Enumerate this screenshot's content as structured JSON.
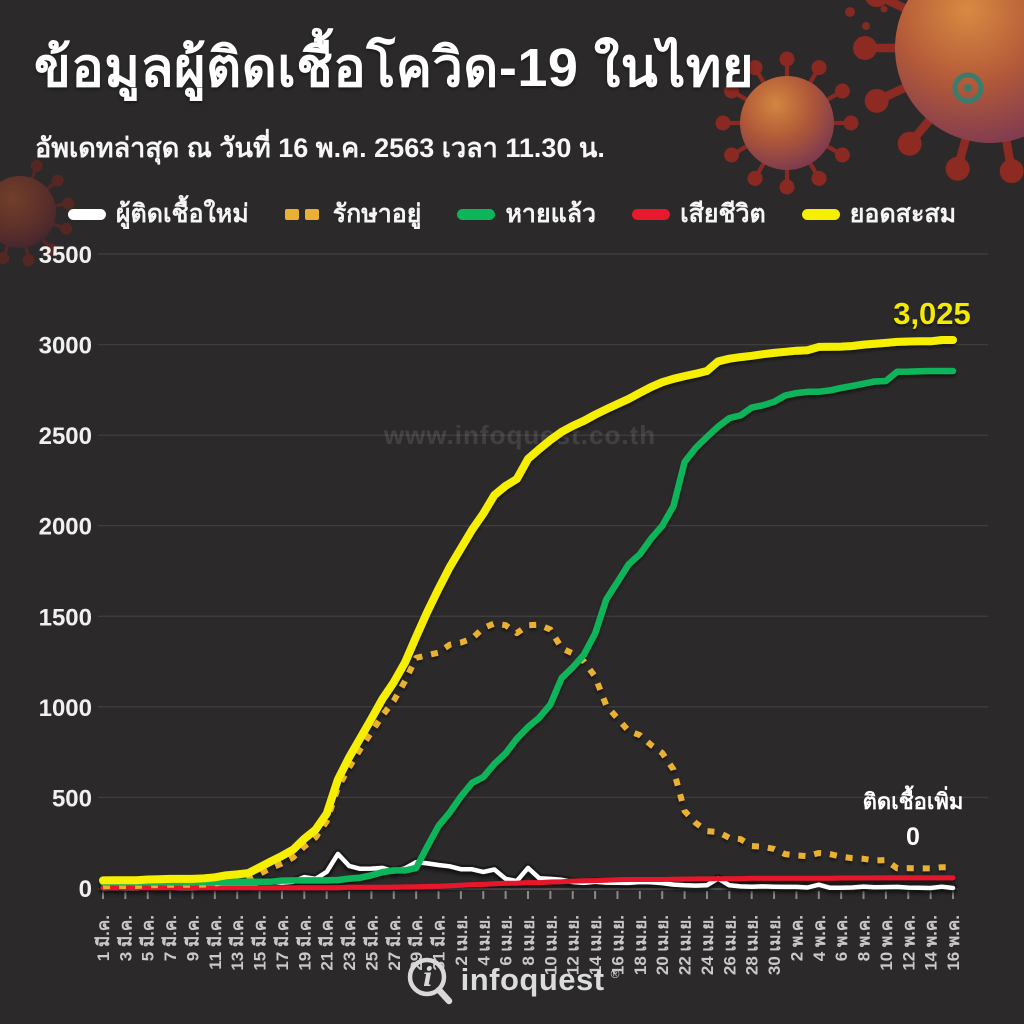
{
  "header": {
    "title": "ข้อมูลผู้ติดเชื้อโควิด-19 ในไทย",
    "subtitle": "อัพเดทล่าสุด ณ วันที่ 16 พ.ค. 2563 เวลา 11.30 น."
  },
  "legend": {
    "items": [
      {
        "label": "ผู้ติดเชื้อใหม่",
        "color": "#ffffff",
        "style": "solid"
      },
      {
        "label": "รักษาอยู่",
        "color": "#eab033",
        "style": "dashed"
      },
      {
        "label": "หายแล้ว",
        "color": "#0cb45a",
        "style": "solid"
      },
      {
        "label": "เสียชีวิต",
        "color": "#e8192c",
        "style": "solid"
      },
      {
        "label": "ยอดสะสม",
        "color": "#f7ef00",
        "style": "solid"
      }
    ]
  },
  "annotations": {
    "total_label": "3,025",
    "new_cases_label": "ติดเชื้อเพิ่ม",
    "new_cases_value": "0"
  },
  "watermark": "www.infoquest.co.th",
  "footer": {
    "logo_text": "infoquest",
    "registered_mark": "®"
  },
  "colors": {
    "background": "#2b2929",
    "grid": "rgba(255,255,255,0.09)",
    "y_labels": "#f0f0f0",
    "x_labels": "#c9c9c9",
    "total_annotation": "#f3ea00"
  },
  "chart_data": {
    "type": "line",
    "title": "ข้อมูลผู้ติดเชื้อโควิด-19 ในไทย",
    "xlabel": "",
    "ylabel": "",
    "ylim": [
      0,
      3500
    ],
    "grid": true,
    "legend_position": "top",
    "y_ticks": [
      0,
      500,
      1000,
      1500,
      2000,
      2500,
      3000,
      3500
    ],
    "n_points": 77,
    "x_start_label": "1 มี.ค.",
    "x_end_label": "16 พ.ค.",
    "x_tick_indices": [
      0,
      2,
      4,
      6,
      8,
      10,
      12,
      14,
      16,
      18,
      20,
      22,
      24,
      26,
      28,
      30,
      32,
      34,
      36,
      38,
      40,
      42,
      44,
      46,
      48,
      50,
      52,
      54,
      56,
      58,
      60,
      62,
      64,
      66,
      68,
      70,
      72,
      74,
      76
    ],
    "x_tick_labels": [
      "1 มี.ค.",
      "3 มี.ค.",
      "5 มี.ค.",
      "7 มี.ค.",
      "9 มี.ค.",
      "11 มี.ค.",
      "13 มี.ค.",
      "15 มี.ค.",
      "17 มี.ค.",
      "19 มี.ค.",
      "21 มี.ค.",
      "23 มี.ค.",
      "25 มี.ค.",
      "27 มี.ค.",
      "29 มี.ค.",
      "31 มี.ค.",
      "2 เม.ย.",
      "4 เม.ย.",
      "6 เม.ย.",
      "8 เม.ย.",
      "10 เม.ย.",
      "12 เม.ย.",
      "14 เม.ย.",
      "16 เม.ย.",
      "18 เม.ย.",
      "20 เม.ย.",
      "22 เม.ย.",
      "24 เม.ย.",
      "26 เม.ย.",
      "28 เม.ย.",
      "30 เม.ย.",
      "2 พ.ค.",
      "4 พ.ค.",
      "6 พ.ค.",
      "8 พ.ค.",
      "10 พ.ค.",
      "12 พ.ค.",
      "14 พ.ค.",
      "16 พ.ค."
    ],
    "series": [
      {
        "name": "ผู้ติดเชื้อใหม่",
        "name_en": "new-cases",
        "color": "#ffffff",
        "dash": false,
        "values": [
          0,
          1,
          0,
          0,
          4,
          1,
          2,
          0,
          0,
          3,
          6,
          11,
          5,
          7,
          32,
          33,
          30,
          35,
          60,
          50,
          89,
          188,
          122,
          106,
          107,
          111,
          91,
          109,
          143,
          136,
          127,
          120,
          104,
          103,
          89,
          102,
          51,
          38,
          111,
          54,
          50,
          45,
          33,
          28,
          34,
          30,
          29,
          28,
          33,
          32,
          27,
          19,
          15,
          13,
          15,
          53,
          15,
          9,
          7,
          9,
          7,
          6,
          6,
          3,
          18,
          1,
          1,
          3,
          8,
          4,
          5,
          6,
          2,
          1,
          0,
          7,
          0
        ]
      },
      {
        "name": "รักษาอยู่",
        "name_en": "active-cases",
        "color": "#eab033",
        "dash": true,
        "values": [
          10,
          11,
          11,
          11,
          15,
          16,
          18,
          18,
          18,
          19,
          24,
          35,
          39,
          46,
          78,
          111,
          135,
          169,
          229,
          279,
          368,
          554,
          665,
          766,
          860,
          953,
          1034,
          1142,
          1270,
          1286,
          1299,
          1343,
          1355,
          1378,
          1435,
          1461,
          1451,
          1407,
          1451,
          1453,
          1427,
          1324,
          1295,
          1251,
          1167,
          1007,
          937,
          866,
          844,
          790,
          746,
          655,
          425,
          359,
          314,
          309,
          277,
          270,
          232,
          228,
          216,
          187,
          180,
          176,
          193,
          187,
          173,
          165,
          161,
          152,
          154,
          109,
          110,
          109,
          108,
          115,
          115
        ]
      },
      {
        "name": "หายแล้ว",
        "name_en": "recovered",
        "color": "#0cb45a",
        "dash": false,
        "values": [
          31,
          31,
          31,
          31,
          31,
          31,
          31,
          31,
          31,
          33,
          34,
          34,
          35,
          35,
          35,
          35,
          41,
          42,
          42,
          42,
          42,
          44,
          52,
          57,
          70,
          88,
          97,
          97,
          111,
          229,
          342,
          416,
          505,
          581,
          612,
          685,
          743,
          824,
          888,
          940,
          1013,
          1159,
          1218,
          1288,
          1405,
          1593,
          1689,
          1787,
          1842,
          1928,
          1999,
          2108,
          2352,
          2430,
          2490,
          2547,
          2594,
          2609,
          2652,
          2665,
          2684,
          2719,
          2732,
          2739,
          2740,
          2747,
          2761,
          2772,
          2784,
          2796,
          2799,
          2850,
          2851,
          2853,
          2854,
          2854,
          2854
        ]
      },
      {
        "name": "เสียชีวิต",
        "name_en": "deaths",
        "color": "#e8192c",
        "dash": false,
        "values": [
          1,
          1,
          1,
          1,
          1,
          1,
          1,
          1,
          1,
          1,
          1,
          1,
          1,
          1,
          1,
          1,
          1,
          1,
          1,
          1,
          1,
          1,
          4,
          4,
          4,
          4,
          5,
          6,
          7,
          9,
          10,
          12,
          15,
          19,
          20,
          23,
          26,
          27,
          30,
          30,
          33,
          35,
          38,
          40,
          41,
          43,
          46,
          47,
          47,
          47,
          47,
          48,
          49,
          50,
          50,
          51,
          51,
          52,
          54,
          54,
          54,
          54,
          54,
          54,
          54,
          54,
          55,
          55,
          55,
          56,
          56,
          56,
          56,
          56,
          56,
          56,
          56
        ]
      },
      {
        "name": "ยอดสะสม",
        "name_en": "cumulative",
        "color": "#f7ef00",
        "dash": false,
        "values": [
          42,
          43,
          43,
          43,
          47,
          48,
          50,
          50,
          50,
          53,
          59,
          70,
          75,
          82,
          114,
          147,
          177,
          212,
          272,
          322,
          411,
          599,
          721,
          827,
          934,
          1045,
          1136,
          1245,
          1388,
          1524,
          1651,
          1771,
          1875,
          1978,
          2067,
          2169,
          2220,
          2258,
          2369,
          2423,
          2473,
          2518,
          2551,
          2579,
          2613,
          2643,
          2672,
          2700,
          2733,
          2765,
          2792,
          2811,
          2826,
          2839,
          2854,
          2907,
          2922,
          2931,
          2938,
          2947,
          2954,
          2960,
          2966,
          2969,
          2987,
          2988,
          2989,
          2992,
          3000,
          3004,
          3009,
          3015,
          3017,
          3018,
          3018,
          3025,
          3025
        ]
      }
    ]
  }
}
